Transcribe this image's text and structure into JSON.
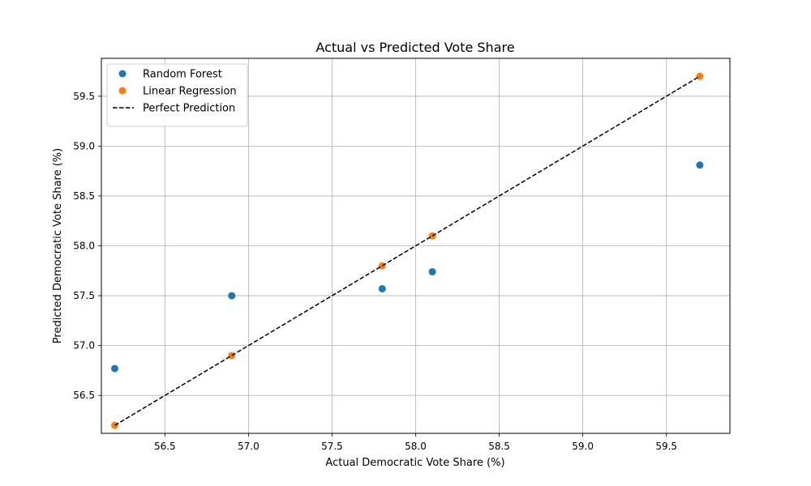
{
  "chart_data": {
    "type": "scatter",
    "title": "Actual vs Predicted Vote Share",
    "xlabel": "Actual Democratic Vote Share (%)",
    "ylabel": "Predicted Democratic Vote Share (%)",
    "xlim": [
      56.12,
      59.88
    ],
    "ylim": [
      56.12,
      59.88
    ],
    "xticks": [
      "56.5",
      "57.0",
      "57.5",
      "58.0",
      "58.5",
      "59.0",
      "59.5"
    ],
    "yticks": [
      "56.5",
      "57.0",
      "57.5",
      "58.0",
      "58.5",
      "59.0",
      "59.5"
    ],
    "grid": true,
    "legend_position": "top-left",
    "series": [
      {
        "name": "Random Forest",
        "kind": "scatter",
        "color": "#1f77b4",
        "x": [
          56.2,
          56.9,
          57.8,
          58.1,
          59.7
        ],
        "y": [
          56.77,
          57.5,
          57.57,
          57.74,
          58.81
        ]
      },
      {
        "name": "Linear Regression",
        "kind": "scatter",
        "color": "#ff7f0e",
        "x": [
          56.2,
          56.9,
          57.8,
          58.1,
          59.7
        ],
        "y": [
          56.2,
          56.9,
          57.8,
          58.1,
          59.7
        ]
      },
      {
        "name": "Perfect Prediction",
        "kind": "line",
        "style": "dashed",
        "color": "#000000",
        "x": [
          56.2,
          59.7
        ],
        "y": [
          56.2,
          59.7
        ]
      }
    ]
  }
}
